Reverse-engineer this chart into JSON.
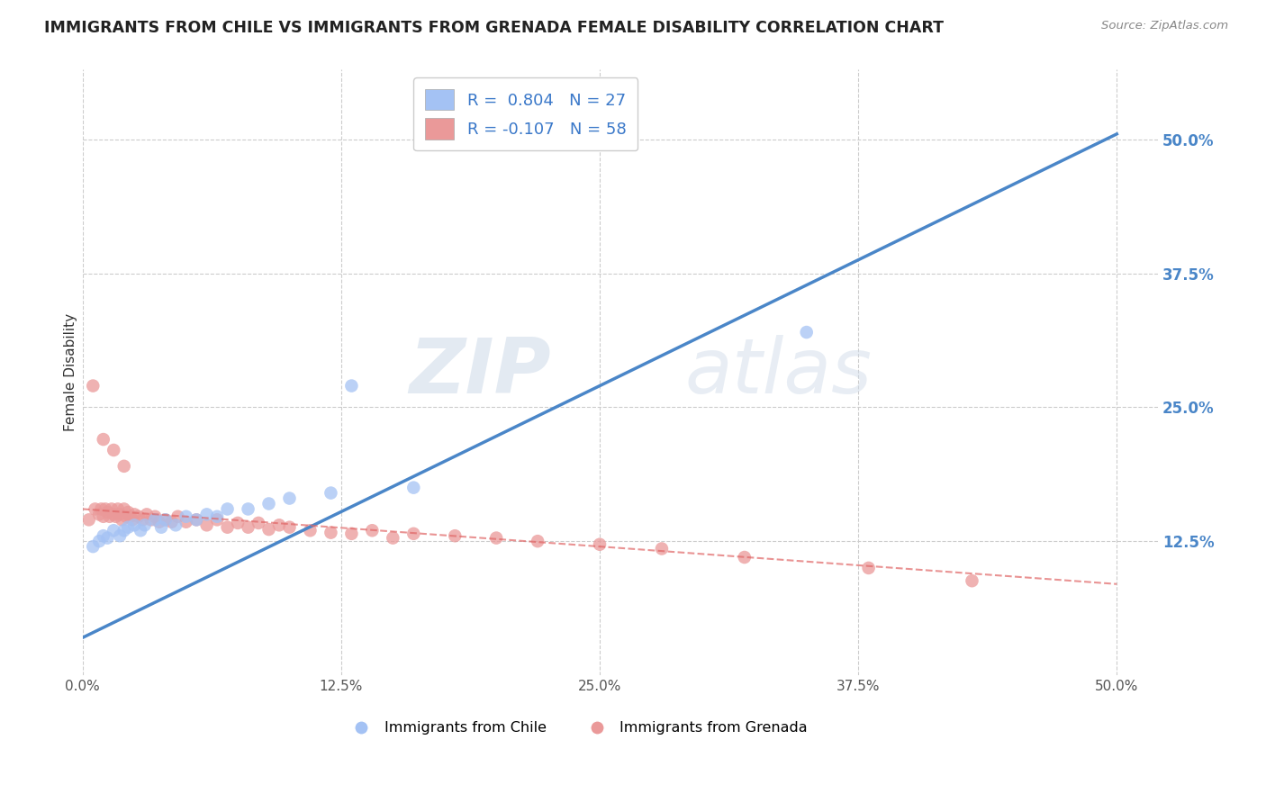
{
  "title": "IMMIGRANTS FROM CHILE VS IMMIGRANTS FROM GRENADA FEMALE DISABILITY CORRELATION CHART",
  "source": "Source: ZipAtlas.com",
  "ylabel": "Female Disability",
  "x_tick_labels": [
    "0.0%",
    "12.5%",
    "25.0%",
    "37.5%",
    "50.0%"
  ],
  "x_tick_values": [
    0.0,
    0.125,
    0.25,
    0.375,
    0.5
  ],
  "y_tick_labels": [
    "12.5%",
    "25.0%",
    "37.5%",
    "50.0%"
  ],
  "y_tick_values": [
    0.125,
    0.25,
    0.375,
    0.5
  ],
  "xlim": [
    0.0,
    0.52
  ],
  "ylim": [
    0.0,
    0.565
  ],
  "legend_r_chile": "R =  0.804",
  "legend_n_chile": "N = 27",
  "legend_r_grenada": "R = -0.107",
  "legend_n_grenada": "N = 58",
  "chile_color": "#a4c2f4",
  "grenada_color": "#ea9999",
  "chile_line_color": "#4a86c8",
  "grenada_line_color": "#e06666",
  "watermark_zip": "ZIP",
  "watermark_atlas": "atlas",
  "background_color": "#ffffff",
  "grid_color": "#cccccc",
  "chile_scatter_x": [
    0.005,
    0.008,
    0.01,
    0.012,
    0.015,
    0.018,
    0.02,
    0.022,
    0.025,
    0.028,
    0.03,
    0.035,
    0.038,
    0.04,
    0.045,
    0.05,
    0.055,
    0.06,
    0.065,
    0.07,
    0.08,
    0.09,
    0.1,
    0.12,
    0.16,
    0.13,
    0.35
  ],
  "chile_scatter_y": [
    0.12,
    0.125,
    0.13,
    0.128,
    0.135,
    0.13,
    0.135,
    0.138,
    0.14,
    0.135,
    0.14,
    0.145,
    0.138,
    0.145,
    0.14,
    0.148,
    0.145,
    0.15,
    0.148,
    0.155,
    0.155,
    0.16,
    0.165,
    0.17,
    0.175,
    0.27,
    0.32
  ],
  "grenada_scatter_x": [
    0.003,
    0.005,
    0.006,
    0.008,
    0.009,
    0.01,
    0.011,
    0.012,
    0.013,
    0.014,
    0.015,
    0.016,
    0.017,
    0.018,
    0.019,
    0.02,
    0.021,
    0.022,
    0.023,
    0.024,
    0.025,
    0.027,
    0.029,
    0.031,
    0.033,
    0.035,
    0.037,
    0.04,
    0.043,
    0.046,
    0.05,
    0.055,
    0.06,
    0.065,
    0.07,
    0.075,
    0.08,
    0.085,
    0.09,
    0.095,
    0.1,
    0.11,
    0.12,
    0.13,
    0.14,
    0.15,
    0.16,
    0.18,
    0.2,
    0.22,
    0.25,
    0.28,
    0.32,
    0.38,
    0.43,
    0.01,
    0.015,
    0.02
  ],
  "grenada_scatter_y": [
    0.145,
    0.27,
    0.155,
    0.15,
    0.155,
    0.148,
    0.155,
    0.152,
    0.148,
    0.155,
    0.15,
    0.148,
    0.155,
    0.15,
    0.145,
    0.155,
    0.148,
    0.152,
    0.148,
    0.145,
    0.15,
    0.148,
    0.145,
    0.15,
    0.145,
    0.148,
    0.143,
    0.145,
    0.143,
    0.148,
    0.143,
    0.145,
    0.14,
    0.145,
    0.138,
    0.142,
    0.138,
    0.142,
    0.136,
    0.14,
    0.138,
    0.135,
    0.133,
    0.132,
    0.135,
    0.128,
    0.132,
    0.13,
    0.128,
    0.125,
    0.122,
    0.118,
    0.11,
    0.1,
    0.088,
    0.22,
    0.21,
    0.195
  ],
  "chile_line_x0": 0.0,
  "chile_line_y0": 0.035,
  "chile_line_x1": 0.5,
  "chile_line_y1": 0.505,
  "grenada_line_x0": 0.0,
  "grenada_line_y0": 0.155,
  "grenada_line_x1": 0.5,
  "grenada_line_y1": 0.085
}
